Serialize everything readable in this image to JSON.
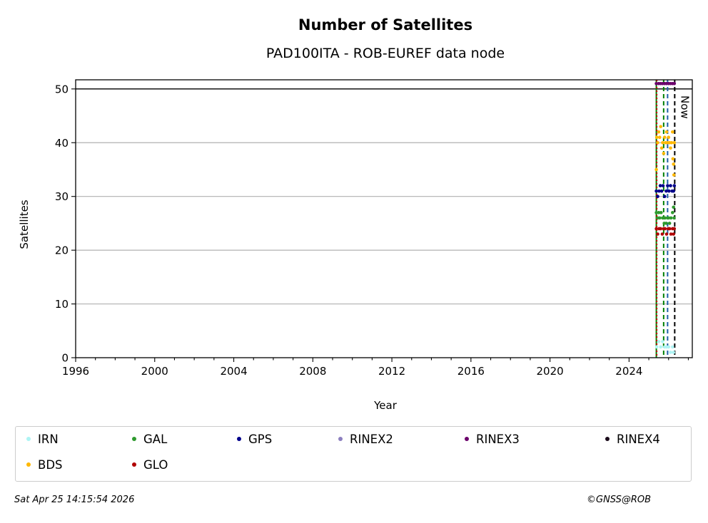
{
  "chart_data": {
    "type": "scatter",
    "title": "Number of Satellites",
    "subtitle": "PAD100ITA - ROB-EUREF data node",
    "xlabel": "Year",
    "ylabel": "Satellites",
    "xlim": [
      1996.0,
      2027.2
    ],
    "ylim": [
      0,
      51.7
    ],
    "xticks": [
      1996,
      2000,
      2004,
      2008,
      2012,
      2016,
      2020,
      2024
    ],
    "yticks": [
      0,
      10,
      20,
      30,
      40,
      50
    ],
    "grid": "horizontal",
    "reference_line_y": 50,
    "now_label": "Now",
    "vlines": [
      {
        "x": 2025.38,
        "color": "#008000",
        "style": "solid"
      },
      {
        "x": 2025.4,
        "color": "#cc0000",
        "style": "dotted"
      },
      {
        "x": 2025.75,
        "color": "#008000",
        "style": "dashed"
      },
      {
        "x": 2025.95,
        "color": "#1f5fa8",
        "style": "dashed"
      },
      {
        "x": 2026.31,
        "color": "#000000",
        "style": "dashed"
      }
    ],
    "series": [
      {
        "name": "IRN",
        "color": "#aef4f4",
        "x": [
          2025.4,
          2025.5,
          2025.6,
          2025.7,
          2025.8,
          2025.9,
          2026.0,
          2026.1,
          2026.2,
          2026.25
        ],
        "y": [
          2,
          3,
          2,
          3,
          2,
          2,
          2,
          1,
          2,
          1
        ]
      },
      {
        "name": "GAL",
        "color": "#2e9a2e",
        "x": [
          2025.38,
          2025.45,
          2025.5,
          2025.55,
          2025.62,
          2025.7,
          2025.78,
          2025.82,
          2025.88,
          2025.95,
          2026.0,
          2026.05,
          2026.12,
          2026.2,
          2026.25,
          2026.28
        ],
        "y": [
          27,
          26,
          27,
          26,
          27,
          26,
          25,
          26,
          25,
          26,
          26,
          25,
          26,
          27,
          28,
          26
        ]
      },
      {
        "name": "GPS",
        "color": "#00008b",
        "x": [
          2025.38,
          2025.45,
          2025.52,
          2025.58,
          2025.65,
          2025.72,
          2025.8,
          2025.88,
          2025.95,
          2026.02,
          2026.1,
          2026.18,
          2026.25,
          2026.29
        ],
        "y": [
          31,
          30,
          31,
          32,
          31,
          32,
          30,
          31,
          32,
          31,
          32,
          31,
          31,
          32
        ]
      },
      {
        "name": "RINEX2",
        "color": "#8c7fbf",
        "x": [],
        "y": []
      },
      {
        "name": "RINEX3",
        "color": "#6b006b",
        "x": [
          2025.38,
          2025.5,
          2025.6,
          2025.7,
          2025.8,
          2025.9,
          2026.0,
          2026.1,
          2026.2,
          2026.29
        ],
        "y": [
          51,
          51,
          51,
          51,
          51,
          51,
          51,
          51,
          51,
          51
        ]
      },
      {
        "name": "RINEX4",
        "color": "#1a0a1a",
        "x": [],
        "y": []
      },
      {
        "name": "BDS",
        "color": "#ffb800",
        "x": [
          2025.38,
          2025.4,
          2025.45,
          2025.5,
          2025.55,
          2025.6,
          2025.65,
          2025.7,
          2025.75,
          2025.8,
          2025.85,
          2025.9,
          2025.95,
          2026.0,
          2026.05,
          2026.1,
          2026.15,
          2026.2,
          2026.22,
          2026.25,
          2026.27,
          2026.29
        ],
        "y": [
          35,
          41,
          40,
          42,
          41,
          43,
          39,
          40,
          38,
          41,
          40,
          42,
          40,
          41,
          40,
          39,
          40,
          42,
          37,
          36,
          34,
          40
        ]
      },
      {
        "name": "GLO",
        "color": "#b00000",
        "x": [
          2025.38,
          2025.45,
          2025.52,
          2025.6,
          2025.68,
          2025.75,
          2025.82,
          2025.9,
          2025.98,
          2026.05,
          2026.12,
          2026.2,
          2026.25,
          2026.29
        ],
        "y": [
          24,
          23,
          24,
          24,
          23,
          24,
          24,
          23,
          24,
          24,
          23,
          24,
          23,
          24
        ]
      }
    ]
  },
  "footer": {
    "timestamp": "Sat Apr 25 14:15:54 2026",
    "copyright": "©GNSS@ROB"
  }
}
